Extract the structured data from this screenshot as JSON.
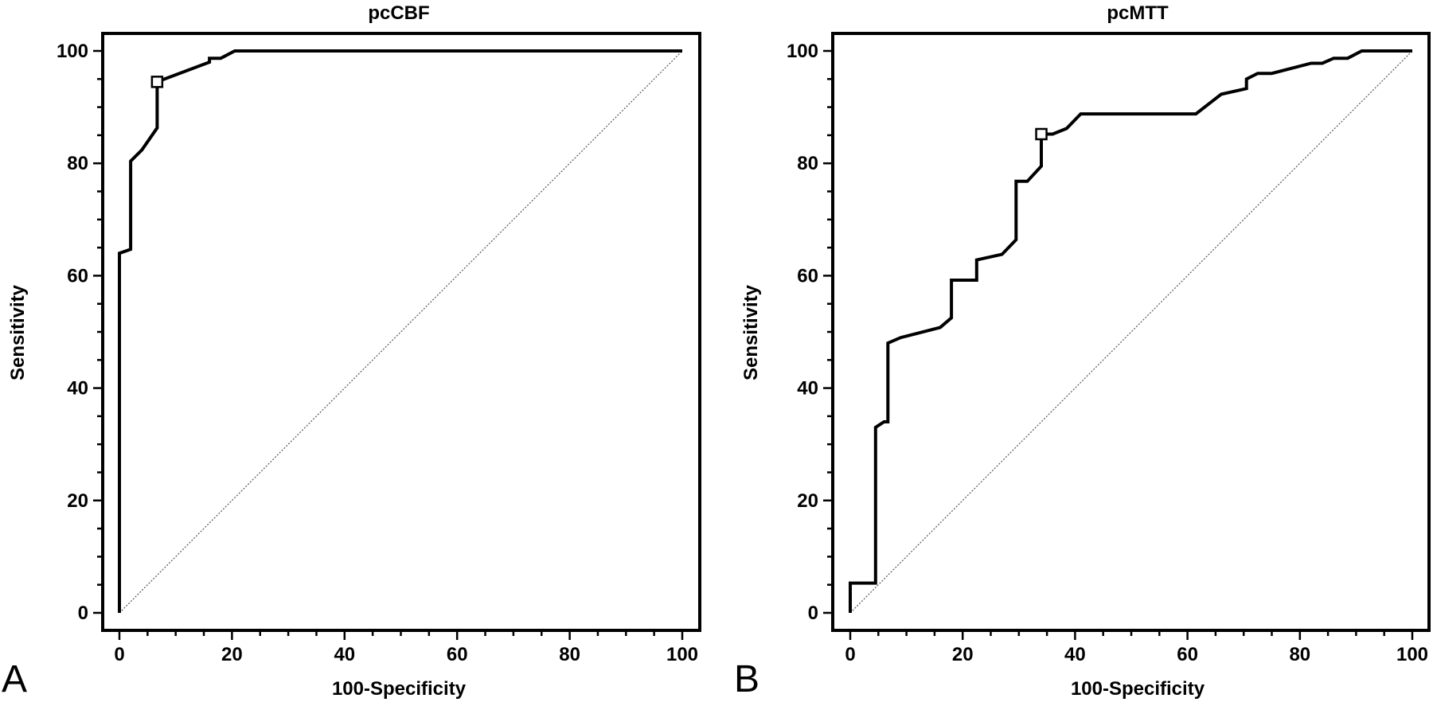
{
  "colors": {
    "background": "#ffffff",
    "curve": "#000000",
    "reference_line": "#555555"
  },
  "panels": [
    {
      "letter": "A",
      "title": "pcCBF",
      "xlabel": "100-Specificity",
      "ylabel": "Sensitivity"
    },
    {
      "letter": "B",
      "title": "pcMTT",
      "xlabel": "100-Specificity",
      "ylabel": "Sensitivity"
    }
  ],
  "chart_data": [
    {
      "type": "line",
      "title": "pcCBF",
      "xlabel": "100-Specificity",
      "ylabel": "Sensitivity",
      "xlim": [
        0,
        100
      ],
      "ylim": [
        0,
        100
      ],
      "xticks": [
        0,
        20,
        40,
        60,
        80,
        100
      ],
      "yticks": [
        0,
        20,
        40,
        60,
        80,
        100
      ],
      "grid": false,
      "series": [
        {
          "x": [
            0,
            0,
            2,
            2,
            4,
            6.7,
            6.7,
            16,
            16,
            18,
            20.5,
            100
          ],
          "y": [
            0,
            64,
            64.7,
            80.4,
            82.4,
            86.3,
            94.5,
            98,
            98.7,
            98.7,
            100,
            100
          ]
        }
      ],
      "reference_line": {
        "x": [
          0,
          100
        ],
        "y": [
          0,
          100
        ],
        "style": "dotted"
      },
      "marker": {
        "x": 6.7,
        "y": 94.5,
        "shape": "square"
      }
    },
    {
      "type": "line",
      "title": "pcMTT",
      "xlabel": "100-Specificity",
      "ylabel": "Sensitivity",
      "xlim": [
        0,
        100
      ],
      "ylim": [
        0,
        100
      ],
      "xticks": [
        0,
        20,
        40,
        60,
        80,
        100
      ],
      "yticks": [
        0,
        20,
        40,
        60,
        80,
        100
      ],
      "grid": false,
      "series": [
        {
          "x": [
            0,
            0,
            4.5,
            4.5,
            6,
            6.7,
            6.7,
            9,
            16,
            18,
            18,
            22.5,
            22.5,
            27,
            29.5,
            29.5,
            31.5,
            34,
            34,
            36,
            38.5,
            41,
            61.5,
            66,
            70.5,
            70.5,
            72.5,
            75,
            82,
            84,
            86,
            88.5,
            91,
            100
          ],
          "y": [
            0,
            5.3,
            5.3,
            33,
            34,
            34,
            48,
            49,
            50.8,
            52.5,
            59.2,
            59.2,
            62.8,
            63.8,
            66.4,
            76.8,
            76.8,
            79.5,
            85.2,
            85.2,
            86.2,
            88.8,
            88.8,
            92.3,
            93.3,
            95,
            96,
            96,
            97.8,
            97.8,
            98.7,
            98.7,
            100,
            100
          ]
        }
      ],
      "reference_line": {
        "x": [
          0,
          100
        ],
        "y": [
          0,
          100
        ],
        "style": "dotted"
      },
      "marker": {
        "x": 34,
        "y": 85.2,
        "shape": "square"
      }
    }
  ]
}
